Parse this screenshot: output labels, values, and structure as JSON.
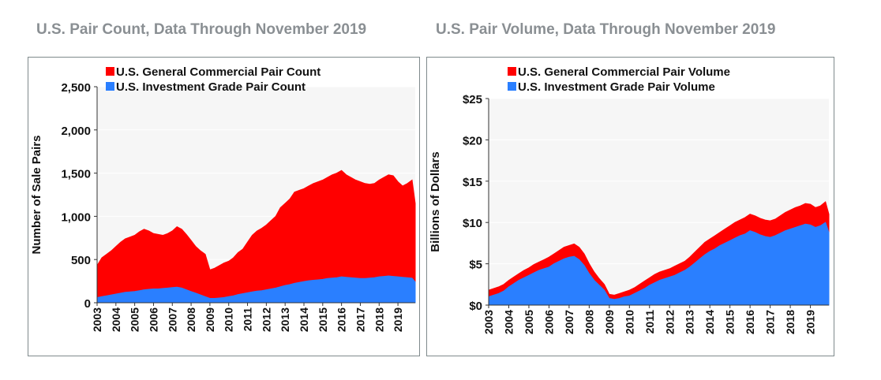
{
  "charts": {
    "count": {
      "title": "U.S. Pair Count, Data Through November 2019"
    },
    "volume": {
      "title": "U.S. Pair Volume, Data Through November 2019"
    }
  },
  "chart_data": [
    {
      "type": "area",
      "title": "U.S. Pair Count, Data Through November 2019",
      "xlabel": "",
      "ylabel": "Number of Sale Pairs",
      "ylim": [
        0,
        2500
      ],
      "yticks": [
        0,
        500,
        1000,
        1500,
        2000,
        2500
      ],
      "ytick_labels": [
        "0",
        "500",
        "1,000",
        "1,500",
        "2,000",
        "2,500"
      ],
      "x_range": [
        2003.0,
        2019.92
      ],
      "xtick_labels": [
        "2003",
        "2004",
        "2005",
        "2006",
        "2007",
        "2008",
        "2009",
        "2010",
        "2011",
        "2012",
        "2013",
        "2014",
        "2015",
        "2016",
        "2017",
        "2018",
        "2019"
      ],
      "grid": true,
      "legend_position": "top-left",
      "colors": {
        "general": "#ff0000",
        "investment": "#2a7fff"
      },
      "series": [
        {
          "name": "U.S. General Commercial Pair Count",
          "x": [
            2003.0,
            2003.25,
            2003.5,
            2003.75,
            2004.0,
            2004.25,
            2004.5,
            2004.75,
            2005.0,
            2005.25,
            2005.5,
            2005.75,
            2006.0,
            2006.25,
            2006.5,
            2006.75,
            2007.0,
            2007.25,
            2007.5,
            2007.75,
            2008.0,
            2008.25,
            2008.5,
            2008.75,
            2009.0,
            2009.25,
            2009.5,
            2009.75,
            2010.0,
            2010.25,
            2010.5,
            2010.75,
            2011.0,
            2011.25,
            2011.5,
            2011.75,
            2012.0,
            2012.25,
            2012.5,
            2012.75,
            2013.0,
            2013.25,
            2013.5,
            2013.75,
            2014.0,
            2014.25,
            2014.5,
            2014.75,
            2015.0,
            2015.25,
            2015.5,
            2015.75,
            2016.0,
            2016.25,
            2016.5,
            2016.75,
            2017.0,
            2017.25,
            2017.5,
            2017.75,
            2018.0,
            2018.25,
            2018.5,
            2018.75,
            2019.0,
            2019.25,
            2019.5,
            2019.75,
            2019.92
          ],
          "values": [
            430,
            520,
            560,
            600,
            650,
            700,
            740,
            760,
            780,
            820,
            850,
            830,
            800,
            790,
            780,
            800,
            830,
            880,
            850,
            790,
            720,
            650,
            600,
            560,
            380,
            400,
            430,
            460,
            480,
            520,
            580,
            620,
            700,
            780,
            830,
            860,
            900,
            950,
            1000,
            1100,
            1150,
            1200,
            1280,
            1300,
            1320,
            1350,
            1380,
            1400,
            1420,
            1450,
            1480,
            1500,
            1530,
            1480,
            1450,
            1420,
            1400,
            1380,
            1370,
            1380,
            1420,
            1450,
            1480,
            1470,
            1400,
            1350,
            1380,
            1420,
            1150
          ]
        },
        {
          "name": "U.S. Investment Grade Pair Count",
          "x": [
            2003.0,
            2003.25,
            2003.5,
            2003.75,
            2004.0,
            2004.25,
            2004.5,
            2004.75,
            2005.0,
            2005.25,
            2005.5,
            2005.75,
            2006.0,
            2006.25,
            2006.5,
            2006.75,
            2007.0,
            2007.25,
            2007.5,
            2007.75,
            2008.0,
            2008.25,
            2008.5,
            2008.75,
            2009.0,
            2009.25,
            2009.5,
            2009.75,
            2010.0,
            2010.25,
            2010.5,
            2010.75,
            2011.0,
            2011.25,
            2011.5,
            2011.75,
            2012.0,
            2012.25,
            2012.5,
            2012.75,
            2013.0,
            2013.25,
            2013.5,
            2013.75,
            2014.0,
            2014.25,
            2014.5,
            2014.75,
            2015.0,
            2015.25,
            2015.5,
            2015.75,
            2016.0,
            2016.25,
            2016.5,
            2016.75,
            2017.0,
            2017.25,
            2017.5,
            2017.75,
            2018.0,
            2018.25,
            2018.5,
            2018.75,
            2019.0,
            2019.25,
            2019.5,
            2019.75,
            2019.92
          ],
          "values": [
            60,
            70,
            80,
            90,
            100,
            110,
            120,
            125,
            130,
            140,
            150,
            155,
            160,
            160,
            165,
            170,
            175,
            180,
            170,
            150,
            130,
            110,
            90,
            70,
            50,
            50,
            55,
            60,
            70,
            80,
            95,
            105,
            115,
            125,
            135,
            140,
            150,
            160,
            170,
            185,
            200,
            210,
            225,
            235,
            245,
            255,
            260,
            265,
            270,
            280,
            285,
            290,
            300,
            295,
            290,
            285,
            280,
            280,
            285,
            290,
            300,
            305,
            310,
            305,
            300,
            295,
            290,
            285,
            240
          ]
        }
      ]
    },
    {
      "type": "area",
      "title": "U.S. Pair Volume, Data Through November 2019",
      "xlabel": "",
      "ylabel": "Billions of Dollars",
      "ylim": [
        0,
        25
      ],
      "yticks": [
        0,
        5,
        10,
        15,
        20,
        25
      ],
      "ytick_labels": [
        "$0",
        "$5",
        "$10",
        "$15",
        "$20",
        "$25"
      ],
      "x_range": [
        2003.0,
        2019.92
      ],
      "xtick_labels": [
        "2003",
        "2004",
        "2005",
        "2006",
        "2007",
        "2008",
        "2009",
        "2010",
        "2011",
        "2012",
        "2013",
        "2014",
        "2015",
        "2016",
        "2017",
        "2018",
        "2019"
      ],
      "grid": true,
      "legend_position": "top-left",
      "colors": {
        "general": "#ff0000",
        "investment": "#2a7fff"
      },
      "series": [
        {
          "name": "U.S. General Commercial Pair Volume",
          "x": [
            2003.0,
            2003.25,
            2003.5,
            2003.75,
            2004.0,
            2004.25,
            2004.5,
            2004.75,
            2005.0,
            2005.25,
            2005.5,
            2005.75,
            2006.0,
            2006.25,
            2006.5,
            2006.75,
            2007.0,
            2007.25,
            2007.5,
            2007.75,
            2008.0,
            2008.25,
            2008.5,
            2008.75,
            2009.0,
            2009.25,
            2009.5,
            2009.75,
            2010.0,
            2010.25,
            2010.5,
            2010.75,
            2011.0,
            2011.25,
            2011.5,
            2011.75,
            2012.0,
            2012.25,
            2012.5,
            2012.75,
            2013.0,
            2013.25,
            2013.5,
            2013.75,
            2014.0,
            2014.25,
            2014.5,
            2014.75,
            2015.0,
            2015.25,
            2015.5,
            2015.75,
            2016.0,
            2016.25,
            2016.5,
            2016.75,
            2017.0,
            2017.25,
            2017.5,
            2017.75,
            2018.0,
            2018.25,
            2018.5,
            2018.75,
            2019.0,
            2019.25,
            2019.5,
            2019.75,
            2019.92
          ],
          "values": [
            1.8,
            2.0,
            2.2,
            2.5,
            3.0,
            3.4,
            3.8,
            4.2,
            4.5,
            4.9,
            5.2,
            5.5,
            5.8,
            6.2,
            6.6,
            7.0,
            7.2,
            7.4,
            7.0,
            6.2,
            5.0,
            4.0,
            3.2,
            2.5,
            1.3,
            1.2,
            1.4,
            1.6,
            1.8,
            2.1,
            2.5,
            2.9,
            3.3,
            3.7,
            4.0,
            4.2,
            4.4,
            4.7,
            5.0,
            5.3,
            5.8,
            6.4,
            7.0,
            7.6,
            8.0,
            8.4,
            8.8,
            9.2,
            9.6,
            10.0,
            10.3,
            10.6,
            11.0,
            10.8,
            10.5,
            10.3,
            10.2,
            10.4,
            10.8,
            11.2,
            11.5,
            11.8,
            12.0,
            12.3,
            12.2,
            11.8,
            12.0,
            12.5,
            11.0
          ]
        },
        {
          "name": "U.S. Investment Grade Pair Volume",
          "x": [
            2003.0,
            2003.25,
            2003.5,
            2003.75,
            2004.0,
            2004.25,
            2004.5,
            2004.75,
            2005.0,
            2005.25,
            2005.5,
            2005.75,
            2006.0,
            2006.25,
            2006.5,
            2006.75,
            2007.0,
            2007.25,
            2007.5,
            2007.75,
            2008.0,
            2008.25,
            2008.5,
            2008.75,
            2009.0,
            2009.25,
            2009.5,
            2009.75,
            2010.0,
            2010.25,
            2010.5,
            2010.75,
            2011.0,
            2011.25,
            2011.5,
            2011.75,
            2012.0,
            2012.25,
            2012.5,
            2012.75,
            2013.0,
            2013.25,
            2013.5,
            2013.75,
            2014.0,
            2014.25,
            2014.5,
            2014.75,
            2015.0,
            2015.25,
            2015.5,
            2015.75,
            2016.0,
            2016.25,
            2016.5,
            2016.75,
            2017.0,
            2017.25,
            2017.5,
            2017.75,
            2018.0,
            2018.25,
            2018.5,
            2018.75,
            2019.0,
            2019.25,
            2019.5,
            2019.75,
            2019.92
          ],
          "values": [
            1.0,
            1.2,
            1.4,
            1.7,
            2.2,
            2.6,
            3.0,
            3.3,
            3.6,
            3.9,
            4.2,
            4.4,
            4.6,
            5.0,
            5.3,
            5.6,
            5.8,
            5.9,
            5.5,
            4.8,
            3.8,
            3.0,
            2.4,
            1.8,
            0.8,
            0.7,
            0.8,
            1.0,
            1.1,
            1.4,
            1.7,
            2.0,
            2.4,
            2.7,
            3.0,
            3.2,
            3.4,
            3.6,
            3.9,
            4.2,
            4.6,
            5.1,
            5.6,
            6.1,
            6.5,
            6.8,
            7.2,
            7.5,
            7.8,
            8.1,
            8.4,
            8.6,
            9.0,
            8.8,
            8.5,
            8.3,
            8.2,
            8.4,
            8.7,
            9.0,
            9.2,
            9.4,
            9.6,
            9.8,
            9.7,
            9.4,
            9.6,
            10.0,
            8.8
          ]
        }
      ]
    }
  ]
}
